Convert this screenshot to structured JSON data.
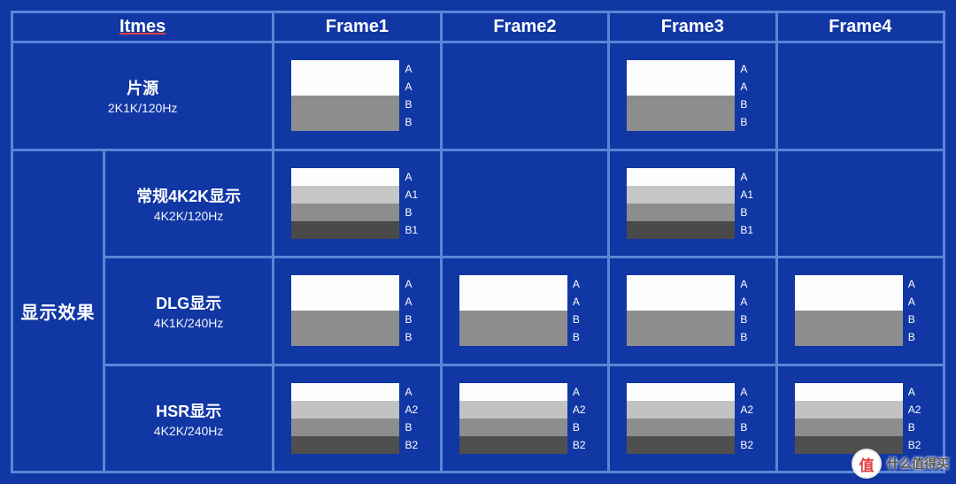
{
  "style": {
    "background": "#1137a4",
    "border_color": "#5a86d6",
    "border_width": "3px",
    "text_color": "#ffffff",
    "underline_color": "#e43c3c"
  },
  "header": {
    "items": "Itmes",
    "frames": [
      "Frame1",
      "Frame2",
      "Frame3",
      "Frame4"
    ]
  },
  "band_colors": {
    "A": "#fdfdfd",
    "A1": "#c7c7c7",
    "A2": "#c2c2c2",
    "B": "#8d8d8d",
    "B1": "#4a4a4a",
    "B2": "#4f4f4f"
  },
  "rows": [
    {
      "label_colspan": 2,
      "title": "片源",
      "subtitle": "2K1K/120Hz",
      "frames": [
        {
          "bands": [
            "A",
            "A",
            "B",
            "B"
          ]
        },
        null,
        {
          "bands": [
            "A",
            "A",
            "B",
            "B"
          ]
        },
        null
      ]
    },
    {
      "side_group": {
        "title": "显示效果",
        "rowspan": 3
      },
      "title": "常规4K2K显示",
      "subtitle": "4K2K/120Hz",
      "frames": [
        {
          "bands": [
            "A",
            "A1",
            "B",
            "B1"
          ]
        },
        null,
        {
          "bands": [
            "A",
            "A1",
            "B",
            "B1"
          ]
        },
        null
      ]
    },
    {
      "title": "DLG显示",
      "subtitle": "4K1K/240Hz",
      "frames": [
        {
          "bands": [
            "A",
            "A",
            "B",
            "B"
          ]
        },
        {
          "bands": [
            "A",
            "A",
            "B",
            "B"
          ]
        },
        {
          "bands": [
            "A",
            "A",
            "B",
            "B"
          ]
        },
        {
          "bands": [
            "A",
            "A",
            "B",
            "B"
          ]
        }
      ]
    },
    {
      "title": "HSR显示",
      "subtitle": "4K2K/240Hz",
      "frames": [
        {
          "bands": [
            "A",
            "A2",
            "B",
            "B2"
          ]
        },
        {
          "bands": [
            "A",
            "A2",
            "B",
            "B2"
          ]
        },
        {
          "bands": [
            "A",
            "A2",
            "B",
            "B2"
          ]
        },
        {
          "bands": [
            "A",
            "A2",
            "B",
            "B2"
          ]
        }
      ]
    }
  ],
  "watermark": {
    "badge": "值",
    "text": "什么值得买"
  },
  "col_widths": {
    "side": "110px",
    "label": "200px",
    "frame": "192px"
  }
}
